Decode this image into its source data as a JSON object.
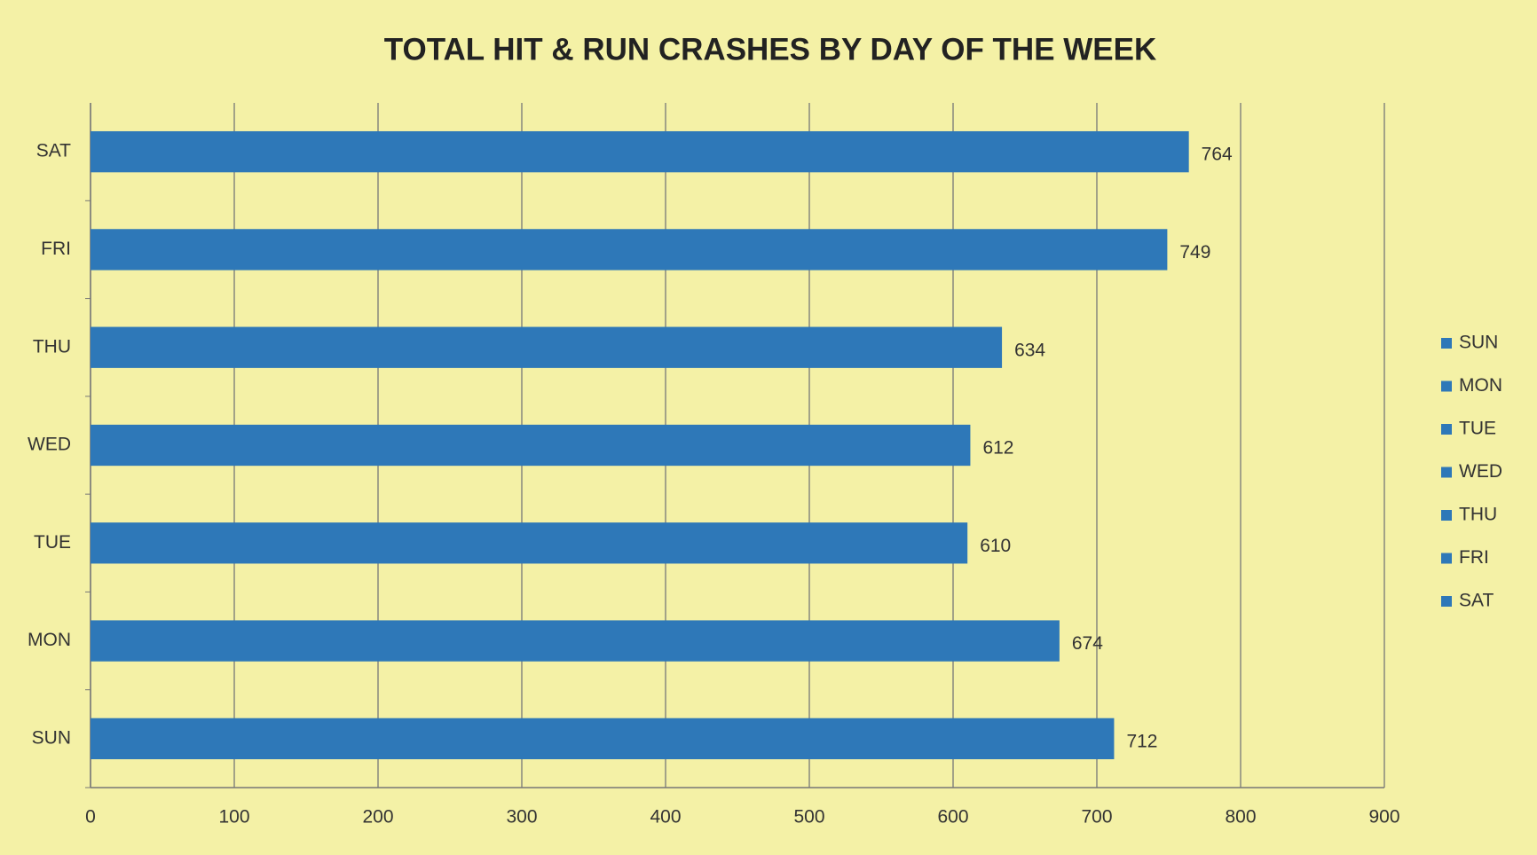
{
  "chart_data": {
    "type": "bar",
    "orientation": "horizontal",
    "title": "TOTAL HIT & RUN CRASHES BY DAY  OF THE WEEK",
    "categories": [
      "SUN",
      "MON",
      "TUE",
      "WED",
      "THU",
      "FRI",
      "SAT"
    ],
    "values": [
      712,
      674,
      610,
      612,
      634,
      749,
      764
    ],
    "color": "#2e78b8",
    "xlim": [
      0,
      900
    ],
    "xticks": [
      0,
      100,
      200,
      300,
      400,
      500,
      600,
      700,
      800,
      900
    ],
    "grid": true,
    "legend": "right"
  }
}
